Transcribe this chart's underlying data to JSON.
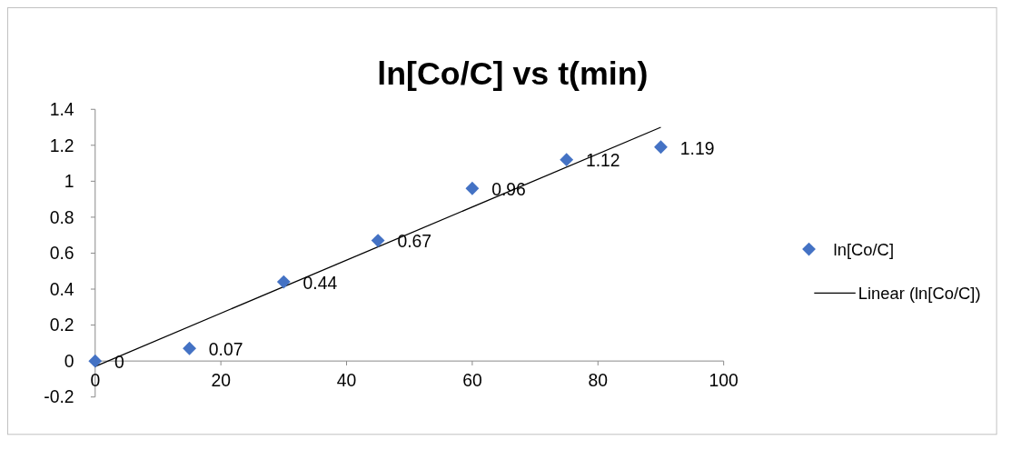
{
  "chart_data": {
    "type": "scatter",
    "title": "ln[Co/C] vs t(min)",
    "x": [
      0,
      15,
      30,
      45,
      60,
      75,
      90
    ],
    "series": [
      {
        "name": "ln[Co/C]",
        "color": "#4472c4",
        "marker": "diamond",
        "values": [
          0,
          0.07,
          0.44,
          0.67,
          0.96,
          1.12,
          1.19
        ],
        "value_labels": [
          "0",
          "0.07",
          "0.44",
          "0.67",
          "0.96",
          "1.12",
          "1.19"
        ]
      },
      {
        "name": "Linear (ln[Co/C])",
        "type": "line",
        "color": "#000000",
        "marker": "none",
        "x": [
          0,
          90
        ],
        "values": [
          -0.03,
          1.3
        ]
      }
    ],
    "line_style": "solid",
    "xlim": [
      0,
      100
    ],
    "xticks": [
      0,
      20,
      40,
      60,
      80,
      100
    ],
    "ylim": [
      -0.2,
      1.4
    ],
    "yticks": [
      -0.2,
      0,
      0.2,
      0.4,
      0.6,
      0.8,
      1,
      1.2,
      1.4
    ],
    "legend": "right"
  }
}
